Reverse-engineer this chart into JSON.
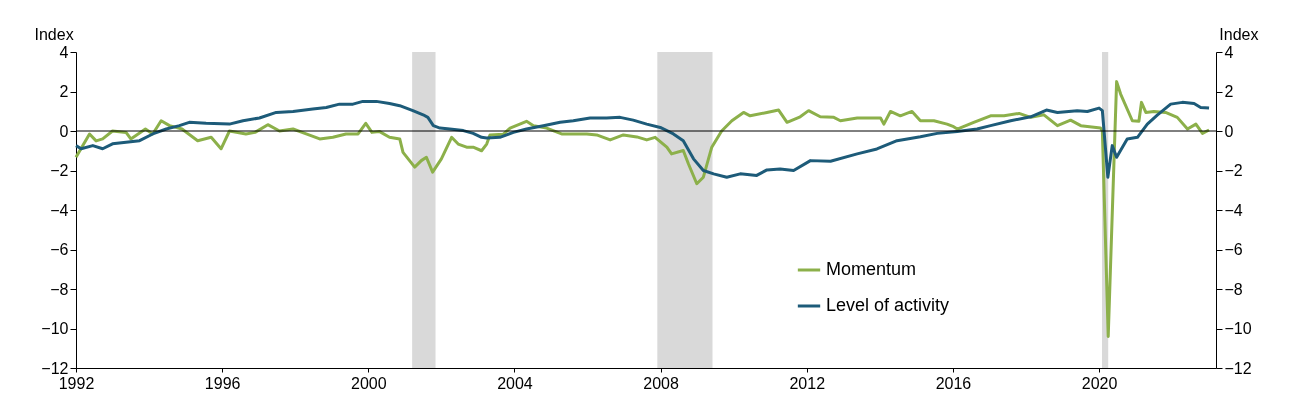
{
  "chart_data": {
    "type": "line",
    "ylabel": "Index",
    "y2label": "Index",
    "xlim": [
      1992,
      2023.2
    ],
    "xticks": [
      1992,
      1996,
      2000,
      2004,
      2008,
      2012,
      2016,
      2020
    ],
    "ylim": [
      -12,
      4
    ],
    "yticks": [
      -12,
      -10,
      -8,
      -6,
      -4,
      -2,
      0,
      2,
      4
    ],
    "y2lim": [
      -12,
      4
    ],
    "y2ticks": [
      -12,
      -10,
      -8,
      -6,
      -4,
      -2,
      0,
      2,
      4
    ],
    "legend": "bottom right",
    "grid": false,
    "ref_lines": [
      {
        "axis": "y",
        "value": 0,
        "color": "#000000"
      }
    ],
    "bands": [
      {
        "axis": "x",
        "from": 2001.2,
        "to": 2001.84,
        "color": "#d9d9d9"
      },
      {
        "axis": "x",
        "from": 2007.91,
        "to": 2009.42,
        "color": "#d9d9d9"
      },
      {
        "axis": "x",
        "from": 2020.08,
        "to": 2020.25,
        "color": "#d9d9d9"
      }
    ],
    "series": [
      {
        "name": "Momentum",
        "color": "#8cb04a",
        "x": [
          1992.0,
          1992.37,
          1992.55,
          1992.73,
          1993.0,
          1993.37,
          1993.5,
          1993.9,
          1994.1,
          1994.33,
          1994.56,
          1994.9,
          1995.33,
          1995.7,
          1995.97,
          1996.2,
          1996.65,
          1996.9,
          1997.25,
          1997.57,
          1997.94,
          1998.3,
          1998.67,
          1999.03,
          1999.39,
          1999.72,
          1999.93,
          2000.1,
          2000.3,
          2000.58,
          2000.86,
          2000.95,
          2001.27,
          2001.45,
          2001.59,
          2001.76,
          2002.0,
          2002.28,
          2002.46,
          2002.69,
          2002.87,
          2003.1,
          2003.24,
          2003.33,
          2003.69,
          2003.88,
          2004.33,
          2004.52,
          2004.88,
          2005.29,
          2005.7,
          2005.98,
          2006.25,
          2006.62,
          2006.98,
          2007.35,
          2007.62,
          2007.85,
          2008.17,
          2008.3,
          2008.62,
          2008.76,
          2008.99,
          2009.17,
          2009.4,
          2009.67,
          2009.95,
          2010.27,
          2010.45,
          2010.91,
          2011.23,
          2011.46,
          2011.82,
          2012.05,
          2012.37,
          2012.74,
          2012.92,
          2013.38,
          2014.02,
          2014.11,
          2014.29,
          2014.56,
          2014.88,
          2015.11,
          2015.48,
          2015.84,
          2016.02,
          2016.12,
          2016.57,
          2017.03,
          2017.4,
          2017.81,
          2018.13,
          2018.49,
          2018.86,
          2019.22,
          2019.5,
          2020.04,
          2020.09,
          2020.25,
          2020.48,
          2020.59,
          2020.91,
          2021.09,
          2021.16,
          2021.28,
          2021.5,
          2021.82,
          2022.14,
          2022.42,
          2022.65,
          2022.83,
          2023.01
        ],
        "values": [
          -1.33,
          -0.15,
          -0.5,
          -0.4,
          0,
          -0.07,
          -0.4,
          0.1,
          -0.15,
          0.52,
          0.27,
          0.1,
          -0.49,
          -0.32,
          -0.9,
          0,
          -0.15,
          -0.07,
          0.32,
          0,
          0.1,
          -0.15,
          -0.4,
          -0.32,
          -0.15,
          -0.15,
          0.39,
          -0.07,
          -0.02,
          -0.32,
          -0.4,
          -1.08,
          -1.83,
          -1.5,
          -1.33,
          -2.08,
          -1.41,
          -0.32,
          -0.66,
          -0.82,
          -0.82,
          -1.0,
          -0.66,
          -0.2,
          -0.17,
          0.15,
          0.49,
          0.27,
          0.15,
          -0.15,
          -0.15,
          -0.15,
          -0.2,
          -0.45,
          -0.2,
          -0.3,
          -0.45,
          -0.32,
          -0.82,
          -1.16,
          -0.99,
          -1.66,
          -2.67,
          -2.34,
          -0.82,
          0,
          0.52,
          0.94,
          0.77,
          0.94,
          1.06,
          0.44,
          0.72,
          1.03,
          0.72,
          0.69,
          0.52,
          0.66,
          0.66,
          0.35,
          0.99,
          0.77,
          0.99,
          0.52,
          0.52,
          0.35,
          0.22,
          0.1,
          0.44,
          0.77,
          0.77,
          0.89,
          0.69,
          0.82,
          0.27,
          0.55,
          0.27,
          0.15,
          0,
          -10.4,
          2.5,
          1.87,
          0.52,
          0.49,
          1.45,
          0.94,
          0.99,
          0.94,
          0.69,
          0.1,
          0.35,
          -0.12,
          0.05
        ]
      },
      {
        "name": "Level of activity",
        "color": "#1d5b79",
        "x": [
          1992.0,
          1992.14,
          1992.46,
          1992.73,
          1993.0,
          1993.37,
          1993.74,
          1994.1,
          1994.47,
          1994.83,
          1995.1,
          1995.56,
          1996.2,
          1996.57,
          1997.02,
          1997.48,
          1997.94,
          1998.48,
          1998.85,
          1999.21,
          1999.58,
          1999.85,
          2000.22,
          2000.58,
          2000.86,
          2001.22,
          2001.5,
          2001.63,
          2001.78,
          2001.96,
          2002.23,
          2002.6,
          2002.87,
          2003.1,
          2003.24,
          2003.6,
          2003.97,
          2004.33,
          2004.79,
          2005.25,
          2005.61,
          2006.07,
          2006.52,
          2006.89,
          2007.25,
          2007.62,
          2007.99,
          2008.35,
          2008.62,
          2008.9,
          2009.17,
          2009.45,
          2009.81,
          2010.18,
          2010.63,
          2010.91,
          2011.27,
          2011.64,
          2012.1,
          2012.65,
          2013.38,
          2013.92,
          2014.47,
          2015.11,
          2015.57,
          2016.12,
          2016.66,
          2017.03,
          2017.58,
          2018.13,
          2018.56,
          2018.86,
          2019.4,
          2019.68,
          2020.0,
          2020.09,
          2020.24,
          2020.36,
          2020.48,
          2020.77,
          2021.05,
          2021.32,
          2021.6,
          2021.96,
          2022.28,
          2022.6,
          2022.78,
          2023.01
        ],
        "values": [
          -0.74,
          -0.9,
          -0.74,
          -0.9,
          -0.65,
          -0.57,
          -0.49,
          -0.15,
          0.1,
          0.27,
          0.44,
          0.39,
          0.35,
          0.52,
          0.66,
          0.94,
          0.99,
          1.11,
          1.19,
          1.36,
          1.36,
          1.5,
          1.5,
          1.39,
          1.28,
          1.03,
          0.82,
          0.69,
          0.27,
          0.15,
          0.1,
          0.02,
          -0.12,
          -0.32,
          -0.35,
          -0.32,
          -0.07,
          0.1,
          0.27,
          0.44,
          0.52,
          0.66,
          0.66,
          0.69,
          0.55,
          0.35,
          0.18,
          -0.15,
          -0.49,
          -1.41,
          -2.0,
          -2.17,
          -2.34,
          -2.17,
          -2.25,
          -1.97,
          -1.92,
          -2.0,
          -1.5,
          -1.53,
          -1.16,
          -0.91,
          -0.49,
          -0.29,
          -0.12,
          -0.02,
          0.1,
          0.27,
          0.52,
          0.72,
          1.06,
          0.94,
          1.03,
          0.99,
          1.16,
          1.03,
          -2.34,
          -0.74,
          -1.33,
          -0.4,
          -0.32,
          0.35,
          0.82,
          1.36,
          1.45,
          1.39,
          1.19,
          1.16
        ]
      }
    ]
  }
}
